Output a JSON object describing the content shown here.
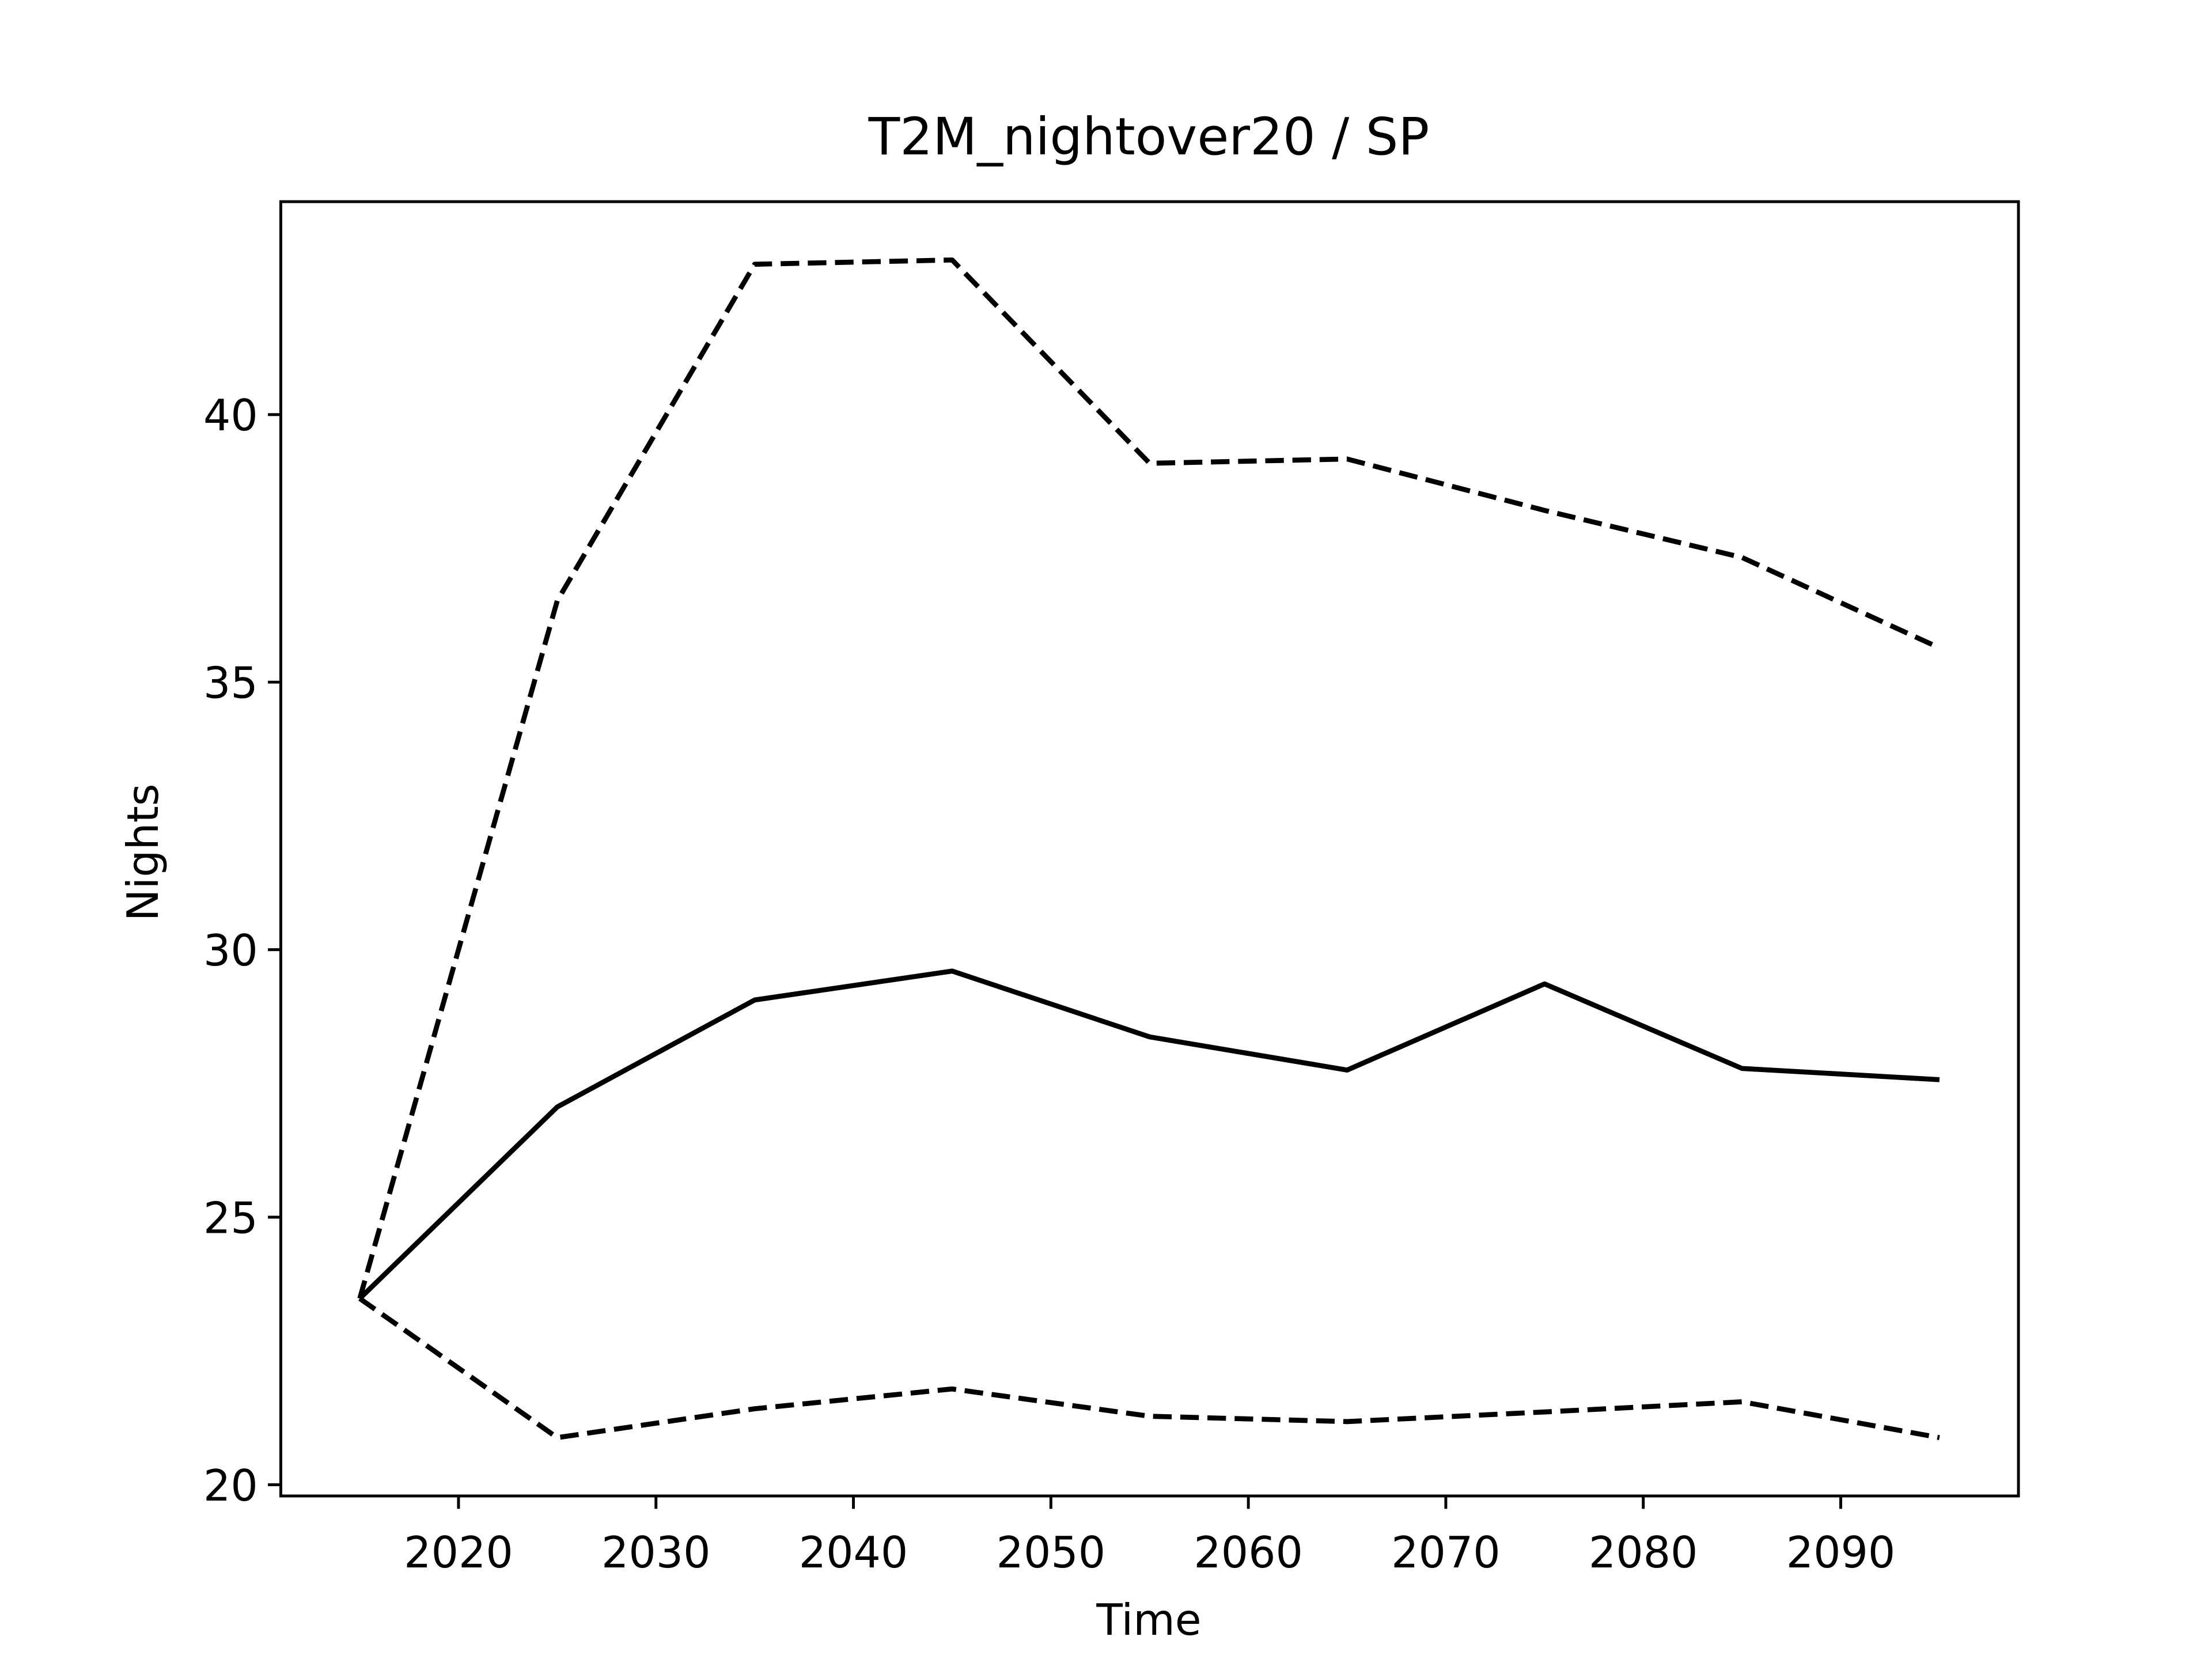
{
  "chart_data": {
    "type": "line",
    "title": "T2M_nightover20 / SP",
    "x_label": "Time",
    "y_label": "Nights",
    "x": [
      2015,
      2025,
      2035,
      2045,
      2055,
      2065,
      2075,
      2085,
      2095
    ],
    "series": [
      {
        "color": "#000000",
        "dashed": false,
        "values": [
          23.48,
          27.06,
          29.06,
          29.6,
          28.37,
          27.75,
          29.36,
          27.78,
          27.57
        ]
      },
      {
        "color": "#000000",
        "dashed": true,
        "values": [
          23.48,
          36.52,
          42.81,
          42.89,
          39.09,
          39.17,
          38.21,
          37.33,
          35.64
        ]
      },
      {
        "color": "#000000",
        "dashed": true,
        "values": [
          23.48,
          20.88,
          21.42,
          21.79,
          21.28,
          21.18,
          21.36,
          21.55,
          20.88
        ]
      }
    ],
    "xlim": [
      2011,
      2099
    ],
    "ylim": [
      19.79,
      43.98
    ],
    "xticks": [
      2020,
      2030,
      2040,
      2050,
      2060,
      2070,
      2080,
      2090
    ],
    "yticks": [
      20,
      25,
      30,
      35,
      40
    ],
    "grid": false
  }
}
